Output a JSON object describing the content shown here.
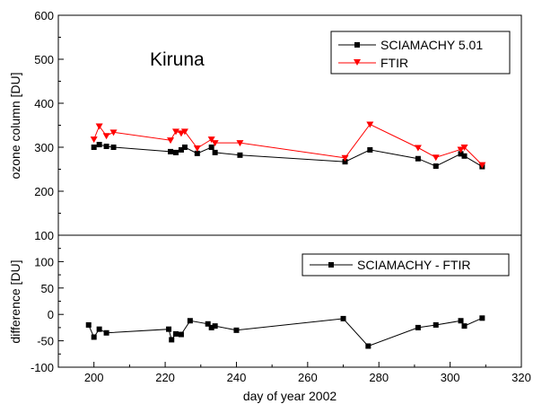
{
  "chart_data": {
    "type": "line",
    "annotation": "Kiruna",
    "xlabel": "day of year 2002",
    "xlim": [
      190,
      320
    ],
    "x_ticks": [
      200,
      220,
      240,
      260,
      280,
      300,
      320
    ],
    "panels": [
      {
        "id": "top",
        "ylabel": "ozone column [DU]",
        "ylim": [
          100,
          600
        ],
        "y_ticks": [
          100,
          200,
          300,
          400,
          500,
          600
        ],
        "legend_position": "top-right",
        "series": [
          {
            "name": "SCIAMACHY 5.01",
            "color": "#000000",
            "marker": "square",
            "x": [
              200,
              201.5,
              203.5,
              205.5,
              221.5,
              223,
              224.5,
              225.5,
              229,
              233,
              234,
              241,
              270.5,
              277.5,
              291,
              296,
              303,
              304,
              309
            ],
            "y": [
              300,
              306,
              302,
              300,
              290,
              288,
              294,
              300,
              286,
              300,
              288,
              282,
              267,
              294,
              274,
              257,
              285,
              280,
              256
            ]
          },
          {
            "name": "FTIR",
            "color": "#ff0000",
            "marker": "triangle-down",
            "x": [
              200,
              201.5,
              203.5,
              205.5,
              221.5,
              223,
              224.5,
              225.5,
              229,
              233,
              234,
              241,
              270.5,
              277.5,
              291,
              296,
              303,
              304,
              309
            ],
            "y": [
              318,
              348,
              326,
              334,
              316,
              336,
              332,
              336,
              298,
              318,
              310,
              310,
              276,
              352,
              299,
              277,
              295,
              300,
              260
            ]
          }
        ]
      },
      {
        "id": "bottom",
        "ylabel": "difference [DU]",
        "ylim": [
          -100,
          150
        ],
        "y_ticks": [
          -100,
          -50,
          0,
          50,
          100
        ],
        "legend_position": "top-right",
        "series": [
          {
            "name": "SCIAMACHY - FTIR",
            "color": "#000000",
            "marker": "square",
            "x": [
              198.5,
              200,
              201.5,
              203.5,
              221,
              221.8,
              223,
              224.5,
              227,
              232,
              233,
              234,
              240,
              270,
              277,
              291,
              296,
              303,
              304,
              309
            ],
            "y": [
              -20,
              -43,
              -28,
              -35,
              -28,
              -48,
              -37,
              -38,
              -12,
              -18,
              -25,
              -22,
              -30,
              -8,
              -60,
              -25,
              -20,
              -12,
              -22,
              -7
            ]
          }
        ]
      }
    ]
  }
}
